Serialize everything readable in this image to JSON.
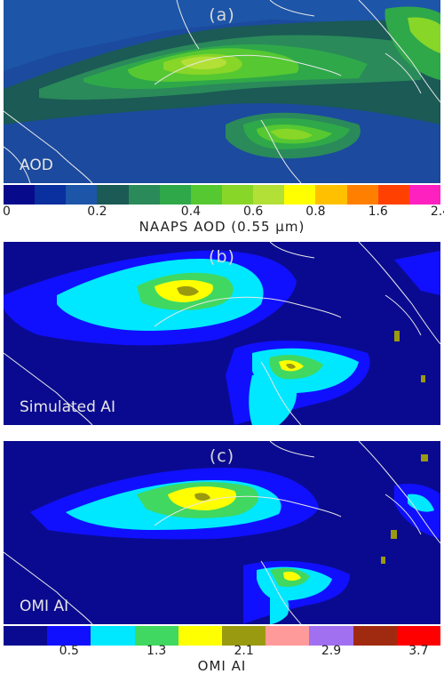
{
  "panel_a": {
    "label": "(a)",
    "tag": "AOD",
    "colorbar": {
      "colors": [
        "#080a8c",
        "#0a2f9e",
        "#1d55a8",
        "#1b5a55",
        "#2a8a5a",
        "#2fa84a",
        "#55c832",
        "#88d628",
        "#b3e036",
        "#ffff00",
        "#ffc000",
        "#ff8000",
        "#ff4000",
        "#ff20c0"
      ],
      "ticks": [
        "0",
        "0.2",
        "0.4",
        "0.6",
        "0.8",
        "1.6",
        "2.4"
      ],
      "title": "NAAPS AOD (0.55 μm)"
    }
  },
  "panel_b": {
    "label": "(b)",
    "tag": "Simulated AI"
  },
  "panel_c": {
    "label": "(c)",
    "tag": "OMI AI"
  },
  "colorbar_ai": {
    "colors": [
      "#0a0a90",
      "#1010ff",
      "#00e8ff",
      "#40d860",
      "#ffff00",
      "#9a9a10",
      "#ff9a9a",
      "#a070f0",
      "#a02a10",
      "#ff0000"
    ],
    "ticks": [
      "0.5",
      "1.3",
      "2.1",
      "2.9",
      "3.7"
    ],
    "title": "OMI AI"
  }
}
